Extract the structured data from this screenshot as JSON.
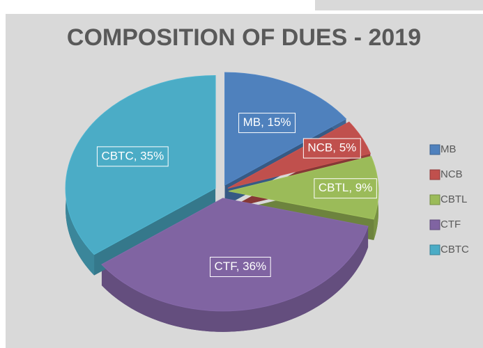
{
  "chart_data": {
    "type": "pie",
    "title": "COMPOSITION OF DUES - 2019",
    "categories": [
      "MB",
      "NCB",
      "CBTL",
      "CTF",
      "CBTC"
    ],
    "values": [
      15,
      5,
      9,
      36,
      35
    ],
    "value_labels": [
      "MB, 15%",
      "NCB, 5%",
      "CBTL, 9%",
      "CTF, 36%",
      "CBTC, 35%"
    ],
    "colors": [
      "#4f81bd",
      "#c0504d",
      "#9bbb59",
      "#8064a2",
      "#4bacc6"
    ],
    "legend": "right"
  }
}
